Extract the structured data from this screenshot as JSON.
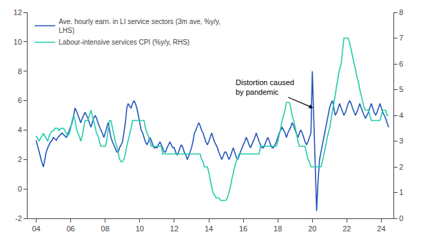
{
  "chart_data": {
    "type": "line",
    "legend": "upper left",
    "grid": false,
    "annotations": [
      {
        "text": "Distortion caused\nby pandemic",
        "x": 2020.05,
        "y": 5.5
      }
    ],
    "xlim": [
      2003.5,
      2024.7
    ],
    "xticks": [
      {
        "value": 2004,
        "label": "04"
      },
      {
        "value": 2006,
        "label": "06"
      },
      {
        "value": 2008,
        "label": "08"
      },
      {
        "value": 2010,
        "label": "10"
      },
      {
        "value": 2012,
        "label": "12"
      },
      {
        "value": 2014,
        "label": "14"
      },
      {
        "value": 2016,
        "label": "16"
      },
      {
        "value": 2018,
        "label": "18"
      },
      {
        "value": 2020,
        "label": "20"
      },
      {
        "value": 2022,
        "label": "22"
      },
      {
        "value": 2024,
        "label": "24"
      }
    ],
    "ylim": [
      -2,
      12
    ],
    "yticks": [
      -2,
      0,
      2,
      4,
      6,
      8,
      10,
      12
    ],
    "y2lim": [
      0,
      8
    ],
    "y2ticks": [
      0,
      1,
      2,
      3,
      4,
      5,
      6,
      7,
      8
    ],
    "x": [
      2004.0,
      2004.08,
      2004.17,
      2004.25,
      2004.33,
      2004.42,
      2004.5,
      2004.58,
      2004.67,
      2004.75,
      2004.83,
      2004.92,
      2005.0,
      2005.08,
      2005.17,
      2005.25,
      2005.33,
      2005.42,
      2005.5,
      2005.58,
      2005.67,
      2005.75,
      2005.83,
      2005.92,
      2006.0,
      2006.08,
      2006.17,
      2006.25,
      2006.33,
      2006.42,
      2006.5,
      2006.58,
      2006.67,
      2006.75,
      2006.83,
      2006.92,
      2007.0,
      2007.08,
      2007.17,
      2007.25,
      2007.33,
      2007.42,
      2007.5,
      2007.58,
      2007.67,
      2007.75,
      2007.83,
      2007.92,
      2008.0,
      2008.08,
      2008.17,
      2008.25,
      2008.33,
      2008.42,
      2008.5,
      2008.58,
      2008.67,
      2008.75,
      2008.83,
      2008.92,
      2009.0,
      2009.08,
      2009.17,
      2009.25,
      2009.33,
      2009.42,
      2009.5,
      2009.58,
      2009.67,
      2009.75,
      2009.83,
      2009.92,
      2010.0,
      2010.08,
      2010.17,
      2010.25,
      2010.33,
      2010.42,
      2010.5,
      2010.58,
      2010.67,
      2010.75,
      2010.83,
      2010.92,
      2011.0,
      2011.08,
      2011.17,
      2011.25,
      2011.33,
      2011.42,
      2011.5,
      2011.58,
      2011.67,
      2011.75,
      2011.83,
      2011.92,
      2012.0,
      2012.08,
      2012.17,
      2012.25,
      2012.33,
      2012.42,
      2012.5,
      2012.58,
      2012.67,
      2012.75,
      2012.83,
      2012.92,
      2013.0,
      2013.08,
      2013.17,
      2013.25,
      2013.33,
      2013.42,
      2013.5,
      2013.58,
      2013.67,
      2013.75,
      2013.83,
      2013.92,
      2014.0,
      2014.08,
      2014.17,
      2014.25,
      2014.33,
      2014.42,
      2014.5,
      2014.58,
      2014.67,
      2014.75,
      2014.83,
      2014.92,
      2015.0,
      2015.08,
      2015.17,
      2015.25,
      2015.33,
      2015.42,
      2015.5,
      2015.58,
      2015.67,
      2015.75,
      2015.83,
      2015.92,
      2016.0,
      2016.08,
      2016.17,
      2016.25,
      2016.33,
      2016.42,
      2016.5,
      2016.58,
      2016.67,
      2016.75,
      2016.83,
      2016.92,
      2017.0,
      2017.08,
      2017.17,
      2017.25,
      2017.33,
      2017.42,
      2017.5,
      2017.58,
      2017.67,
      2017.75,
      2017.83,
      2017.92,
      2018.0,
      2018.08,
      2018.17,
      2018.25,
      2018.33,
      2018.42,
      2018.5,
      2018.58,
      2018.67,
      2018.75,
      2018.83,
      2018.92,
      2019.0,
      2019.08,
      2019.17,
      2019.25,
      2019.33,
      2019.42,
      2019.5,
      2019.58,
      2019.67,
      2019.75,
      2019.83,
      2019.92,
      2020.0,
      2020.08,
      2020.17,
      2020.25,
      2020.33,
      2020.42,
      2020.5,
      2020.58,
      2020.67,
      2020.75,
      2020.83,
      2020.92,
      2021.0,
      2021.08,
      2021.17,
      2021.25,
      2021.33,
      2021.42,
      2021.5,
      2021.58,
      2021.67,
      2021.75,
      2021.83,
      2021.92,
      2022.0,
      2022.08,
      2022.17,
      2022.25,
      2022.33,
      2022.42,
      2022.5,
      2022.58,
      2022.67,
      2022.75,
      2022.83,
      2022.92,
      2023.0,
      2023.08,
      2023.17,
      2023.25,
      2023.33,
      2023.42,
      2023.5,
      2023.58,
      2023.67,
      2023.75,
      2023.83,
      2023.92,
      2024.0,
      2024.08,
      2024.17,
      2024.25,
      2024.33,
      2024.42
    ],
    "series": [
      {
        "name": "Ave. hourly earn. in LI service sectors (3m ave, %y/y,\nLHS)",
        "color": "#2255bb",
        "values": [
          3.3,
          2.9,
          2.5,
          2.2,
          1.8,
          1.5,
          2.0,
          2.5,
          2.8,
          3.0,
          3.2,
          3.3,
          3.5,
          3.4,
          3.3,
          3.5,
          3.6,
          3.7,
          3.8,
          3.7,
          3.6,
          3.5,
          3.7,
          4.0,
          4.2,
          4.5,
          5.0,
          5.5,
          5.3,
          5.0,
          4.8,
          4.5,
          4.8,
          5.0,
          5.2,
          5.0,
          4.8,
          4.5,
          4.2,
          4.5,
          4.8,
          5.0,
          4.8,
          4.5,
          4.2,
          4.0,
          3.8,
          3.5,
          3.8,
          4.2,
          4.5,
          4.0,
          3.5,
          3.2,
          3.0,
          2.8,
          2.5,
          2.5,
          2.8,
          3.0,
          3.2,
          3.8,
          4.5,
          5.5,
          5.8,
          5.6,
          5.5,
          5.8,
          6.0,
          5.8,
          5.5,
          5.0,
          4.5,
          4.0,
          3.8,
          3.5,
          3.2,
          3.0,
          3.2,
          3.5,
          3.3,
          3.0,
          2.8,
          2.8,
          2.8,
          3.0,
          3.2,
          3.0,
          2.8,
          2.5,
          2.5,
          2.8,
          3.0,
          3.2,
          3.0,
          2.8,
          2.8,
          2.5,
          2.3,
          2.5,
          2.8,
          3.0,
          2.8,
          2.5,
          2.3,
          2.0,
          2.2,
          2.5,
          2.8,
          3.2,
          3.8,
          4.0,
          4.2,
          4.5,
          4.3,
          4.0,
          3.8,
          3.5,
          3.2,
          3.0,
          3.2,
          3.5,
          3.8,
          3.5,
          3.2,
          3.0,
          2.8,
          2.5,
          2.2,
          2.0,
          2.2,
          2.5,
          2.5,
          2.3,
          2.0,
          2.2,
          2.5,
          2.8,
          2.5,
          2.2,
          2.0,
          2.2,
          2.5,
          2.8,
          3.0,
          3.2,
          3.5,
          3.3,
          3.0,
          2.8,
          3.0,
          3.2,
          3.5,
          3.8,
          3.5,
          3.2,
          3.0,
          2.8,
          2.8,
          3.0,
          3.2,
          3.5,
          3.3,
          3.0,
          2.8,
          2.8,
          3.0,
          3.2,
          3.5,
          3.8,
          4.0,
          4.2,
          4.0,
          3.8,
          3.5,
          3.8,
          4.0,
          4.2,
          4.5,
          4.3,
          4.0,
          3.8,
          3.5,
          3.8,
          4.0,
          3.8,
          3.5,
          3.2,
          3.0,
          3.2,
          3.5,
          3.8,
          8.0,
          5.0,
          2.0,
          -1.5,
          0.5,
          2.0,
          2.5,
          3.0,
          3.5,
          4.0,
          4.5,
          5.0,
          5.5,
          5.8,
          6.0,
          5.5,
          5.0,
          5.2,
          5.5,
          5.8,
          5.5,
          5.2,
          5.0,
          5.2,
          5.5,
          5.8,
          6.0,
          5.8,
          5.5,
          5.2,
          5.0,
          5.2,
          5.5,
          5.8,
          5.5,
          5.2,
          5.0,
          4.8,
          5.0,
          5.2,
          5.5,
          5.8,
          5.5,
          5.2,
          5.0,
          5.2,
          5.5,
          5.8,
          5.5,
          5.2,
          5.0,
          4.8,
          4.5,
          4.2
        ]
      },
      {
        "name": "Labour-intensive services CPI (%y/y, RHS)",
        "color": "#22ccaa",
        "axis": "y2",
        "values": [
          3.2,
          3.1,
          3.0,
          3.1,
          3.2,
          3.3,
          3.2,
          3.1,
          3.0,
          3.2,
          3.3,
          3.4,
          3.4,
          3.5,
          3.5,
          3.5,
          3.4,
          3.5,
          3.5,
          3.5,
          3.4,
          3.3,
          3.2,
          3.3,
          3.5,
          3.8,
          4.0,
          3.8,
          3.5,
          3.3,
          3.2,
          3.0,
          3.2,
          3.5,
          3.8,
          3.8,
          3.8,
          4.0,
          4.2,
          4.0,
          3.8,
          3.5,
          3.3,
          3.2,
          3.0,
          2.8,
          2.8,
          2.8,
          2.8,
          3.0,
          3.5,
          3.8,
          3.8,
          3.5,
          3.2,
          3.0,
          2.8,
          2.5,
          2.3,
          2.2,
          2.2,
          2.3,
          2.5,
          2.8,
          3.0,
          3.3,
          3.5,
          3.8,
          3.8,
          3.8,
          3.8,
          3.8,
          3.8,
          3.8,
          3.8,
          3.8,
          3.5,
          3.3,
          3.2,
          3.0,
          2.8,
          2.8,
          2.8,
          2.8,
          2.8,
          2.8,
          2.8,
          2.8,
          2.5,
          2.5,
          2.5,
          2.5,
          2.5,
          2.5,
          2.5,
          2.5,
          2.5,
          2.5,
          2.5,
          2.5,
          2.5,
          2.5,
          2.5,
          2.5,
          2.5,
          2.5,
          2.5,
          2.5,
          2.5,
          2.5,
          2.5,
          2.5,
          2.5,
          2.5,
          2.5,
          2.3,
          2.2,
          2.0,
          2.0,
          2.0,
          1.8,
          1.5,
          1.2,
          1.0,
          0.9,
          0.8,
          0.8,
          0.8,
          0.7,
          0.7,
          0.7,
          0.7,
          0.7,
          0.8,
          1.0,
          1.2,
          1.5,
          1.8,
          2.0,
          2.2,
          2.3,
          2.5,
          2.5,
          2.5,
          2.5,
          2.5,
          2.5,
          2.5,
          2.5,
          2.5,
          2.5,
          2.5,
          2.5,
          2.5,
          2.5,
          2.5,
          2.8,
          2.8,
          2.8,
          2.8,
          2.8,
          2.8,
          2.8,
          2.8,
          2.8,
          2.8,
          2.8,
          2.8,
          3.0,
          3.2,
          3.5,
          3.8,
          4.0,
          4.2,
          4.5,
          4.5,
          4.5,
          4.3,
          4.0,
          3.8,
          3.5,
          3.3,
          3.0,
          2.8,
          2.8,
          2.8,
          2.8,
          2.8,
          2.5,
          2.3,
          2.2,
          2.0,
          2.0,
          2.0,
          2.0,
          2.0,
          2.0,
          2.0,
          2.0,
          2.2,
          2.5,
          2.8,
          3.0,
          3.3,
          3.5,
          3.8,
          4.2,
          4.5,
          4.8,
          5.2,
          5.5,
          5.8,
          6.0,
          6.5,
          7.0,
          7.0,
          7.0,
          7.0,
          6.8,
          6.5,
          6.3,
          6.0,
          5.8,
          5.5,
          5.3,
          5.0,
          4.8,
          4.5,
          4.3,
          4.2,
          4.2,
          4.2,
          4.0,
          3.8,
          3.8,
          3.8,
          3.8,
          3.8,
          3.8,
          3.8,
          4.0,
          4.2,
          4.2,
          4.2,
          4.0,
          4.0
        ]
      }
    ]
  }
}
